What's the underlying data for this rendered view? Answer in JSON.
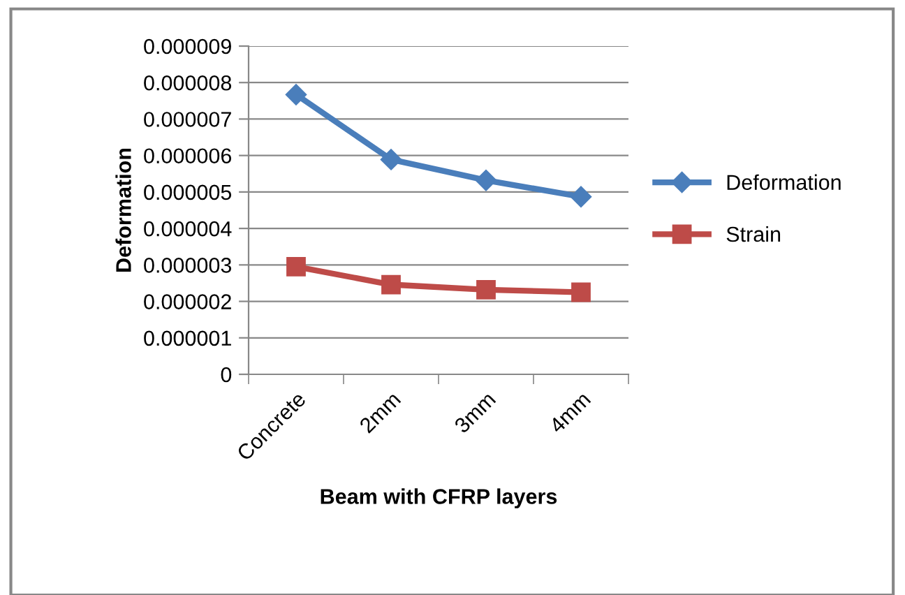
{
  "chart_data": {
    "type": "line",
    "xlabel": "Beam with CFRP layers",
    "ylabel": "Deformation",
    "categories": [
      "Concrete",
      "2mm",
      "3mm",
      "4mm"
    ],
    "series": [
      {
        "name": "Deformation",
        "color": "#4a7ebb",
        "marker": "diamond",
        "values": [
          7.67e-06,
          5.89e-06,
          5.32e-06,
          4.87e-06
        ]
      },
      {
        "name": "Strain",
        "color": "#be4b48",
        "marker": "square",
        "values": [
          2.95e-06,
          2.46e-06,
          2.32e-06,
          2.25e-06
        ]
      }
    ],
    "ylim": [
      0,
      9e-06
    ],
    "yticks": [
      {
        "value": 0,
        "label": "0"
      },
      {
        "value": 1e-06,
        "label": "0.000001"
      },
      {
        "value": 2e-06,
        "label": "0.000002"
      },
      {
        "value": 3e-06,
        "label": "0.000003"
      },
      {
        "value": 4e-06,
        "label": "0.000004"
      },
      {
        "value": 5e-06,
        "label": "0.000005"
      },
      {
        "value": 6e-06,
        "label": "0.000006"
      },
      {
        "value": 7e-06,
        "label": "0.000007"
      },
      {
        "value": 8e-06,
        "label": "0.000008"
      },
      {
        "value": 9e-06,
        "label": "0.000009"
      }
    ],
    "grid": "y",
    "legend": "right"
  }
}
